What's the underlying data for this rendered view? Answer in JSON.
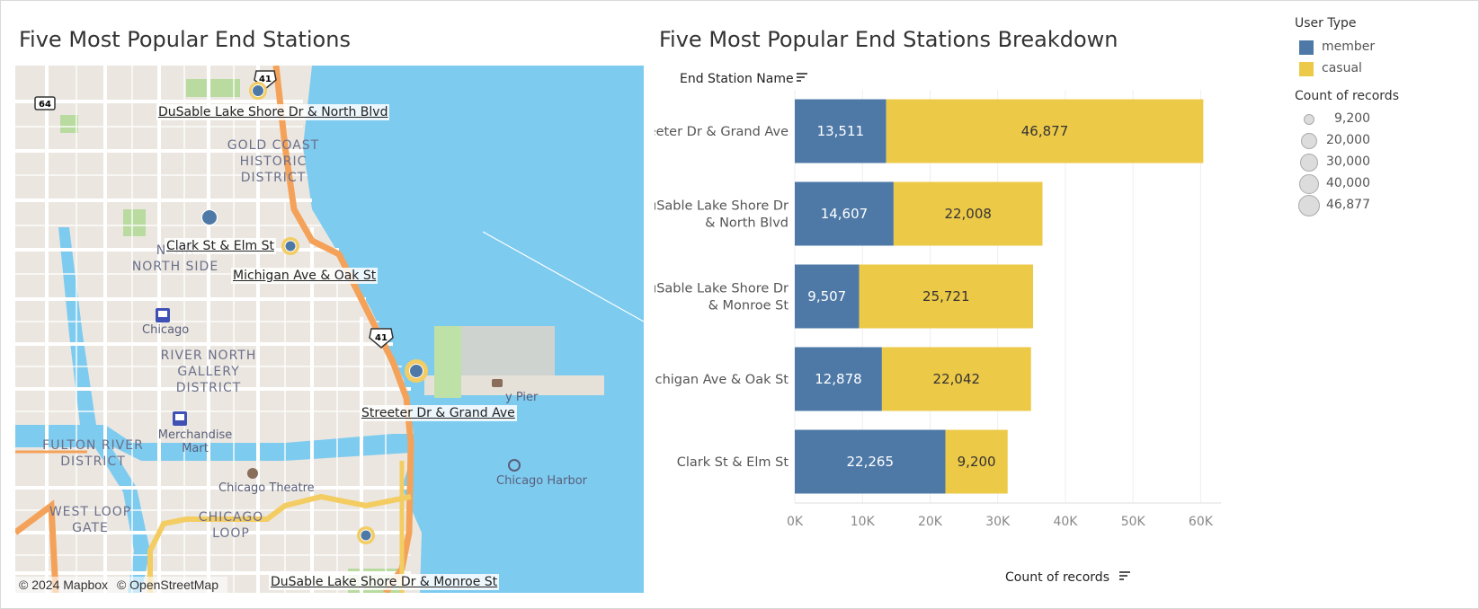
{
  "map_title": "Five Most Popular End Stations",
  "chart_title": "Five Most Popular End Stations Breakdown",
  "map": {
    "stations": [
      {
        "name": "DuSable Lake Shore Dr & North Blvd"
      },
      {
        "name": "Clark St & Elm St"
      },
      {
        "name": "Michigan Ave & Oak St"
      },
      {
        "name": "Streeter Dr & Grand Ave"
      },
      {
        "name": "DuSable Lake Shore Dr & Monroe St"
      }
    ],
    "districts": [
      {
        "name": "GOLD COAST HISTORIC DISTRICT"
      },
      {
        "name": "NEAR NORTH SIDE"
      },
      {
        "name": "RIVER NORTH GALLERY DISTRICT"
      },
      {
        "name": "FULTON RIVER DISTRICT"
      },
      {
        "name": "WEST LOOP GATE"
      },
      {
        "name": "CHICAGO LOOP"
      }
    ],
    "pois": {
      "chicago_station": "Chicago",
      "merchandise_mart": "Merchandise Mart",
      "chicago_theatre": "Chicago Theatre",
      "navy_pier": "y Pier",
      "chicago_harbor": "Chicago Harbor"
    },
    "shields": {
      "route_41": "41",
      "route_64": "64"
    },
    "attribution": [
      "© 2024 Mapbox",
      "© OpenStreetMap"
    ]
  },
  "legend": {
    "user_type_title": "User Type",
    "user_types": [
      {
        "label": "member",
        "color": "#4e79a7"
      },
      {
        "label": "casual",
        "color": "#edc948"
      }
    ],
    "count_title": "Count of records",
    "sizes": [
      "9,200",
      "20,000",
      "30,000",
      "40,000",
      "46,877"
    ]
  },
  "chart_data": {
    "type": "bar",
    "orientation": "horizontal",
    "stacked": true,
    "title": "Five Most Popular End Stations Breakdown",
    "ylabel": "End Station Name",
    "xlabel": "Count of records",
    "categories": [
      "Streeter Dr & Grand Ave",
      "DuSable Lake Shore Dr & North Blvd",
      "DuSable Lake Shore Dr & Monroe St",
      "Michigan Ave & Oak St",
      "Clark St & Elm St"
    ],
    "series": [
      {
        "name": "member",
        "color": "#4e79a7",
        "values": [
          13511,
          14607,
          9507,
          12878,
          22265
        ]
      },
      {
        "name": "casual",
        "color": "#edc948",
        "values": [
          46877,
          22008,
          25721,
          22042,
          9200
        ]
      }
    ],
    "value_labels": {
      "member": [
        "13,511",
        "14,607",
        "9,507",
        "12,878",
        "22,265"
      ],
      "casual": [
        "46,877",
        "22,008",
        "25,721",
        "22,042",
        "9,200"
      ]
    },
    "xlim": [
      0,
      63000
    ],
    "xticks": [
      {
        "value": 0,
        "label": "0K"
      },
      {
        "value": 10000,
        "label": "10K"
      },
      {
        "value": 20000,
        "label": "20K"
      },
      {
        "value": 30000,
        "label": "30K"
      },
      {
        "value": 40000,
        "label": "40K"
      },
      {
        "value": 50000,
        "label": "50K"
      },
      {
        "value": 60000,
        "label": "60K"
      }
    ],
    "grid": true,
    "legend": "right"
  }
}
